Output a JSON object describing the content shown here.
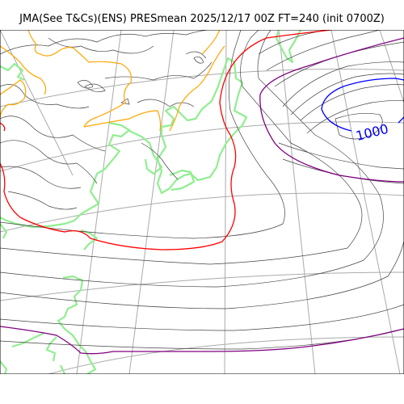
{
  "title": "JMA(See T&Cs)(ENS) PRESmean 2025/12/17 00Z FT=240 (init 0700Z)",
  "contour_label": "1000",
  "colors": {
    "coastline": "#90ee90",
    "graticule": "#aaaaaa",
    "isobar": "#444444",
    "isobar_orange": "#ffa500",
    "isobar_red": "#ff0000",
    "isobar_purple": "#800080",
    "isobar_blue": "#0000ff"
  }
}
